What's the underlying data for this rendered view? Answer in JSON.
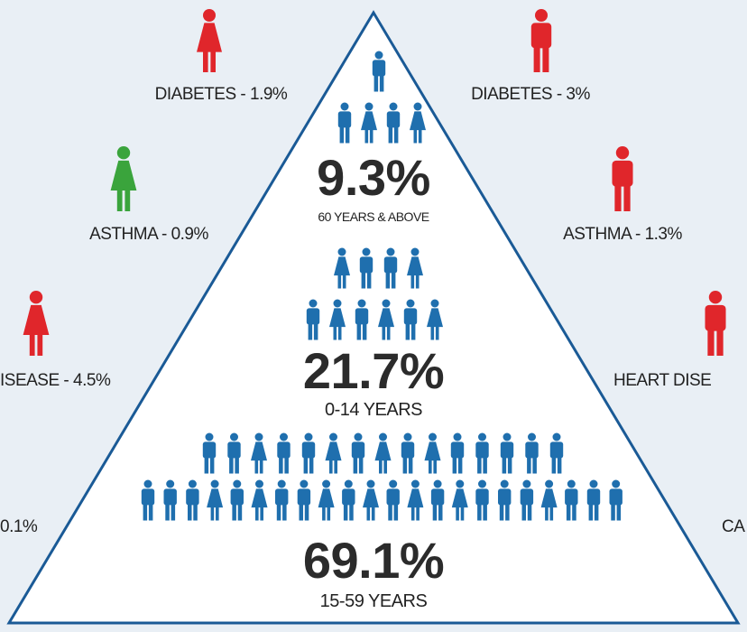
{
  "side_labels": {
    "left": [
      "DIABETES - 1.9%",
      "ASTHMA - 0.9%",
      "ISEASE - 4.5%",
      "0.1%"
    ],
    "right": [
      "DIABETES - 3%",
      "ASTHMA - 1.3%",
      "HEART DISE",
      "CA"
    ]
  },
  "groups": [
    {
      "value": "9.3%",
      "label": "60 YEARS & ABOVE"
    },
    {
      "value": "21.7%",
      "label": "0-14 YEARS"
    },
    {
      "value": "69.1%",
      "label": "15-59 YEARS"
    }
  ]
}
